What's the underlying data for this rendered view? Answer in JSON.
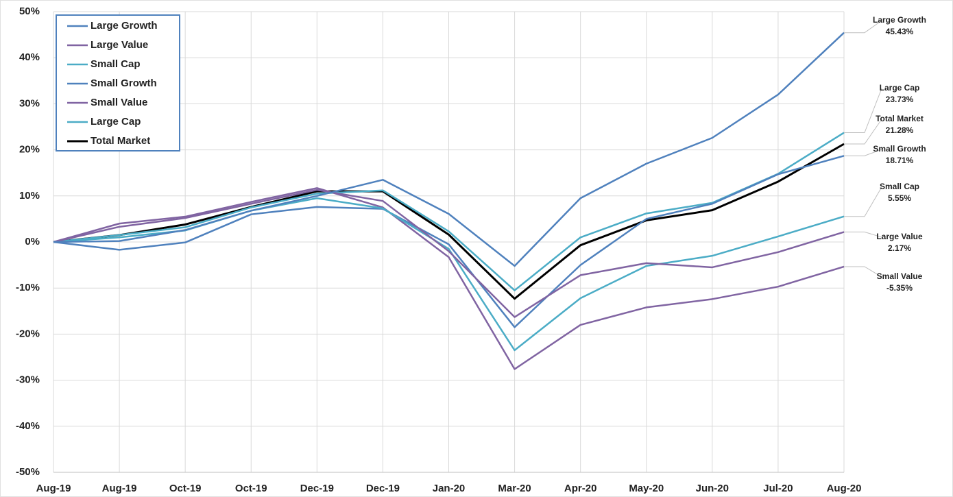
{
  "chart_data": {
    "type": "line",
    "categories": [
      "Aug-19",
      "Aug-19",
      "Oct-19",
      "Oct-19",
      "Dec-19",
      "Dec-19",
      "Jan-20",
      "Mar-20",
      "Apr-20",
      "May-20",
      "Jun-20",
      "Jul-20",
      "Aug-20"
    ],
    "ylim": [
      -50,
      50
    ],
    "yticks": [
      {
        "value": -50,
        "label": "-50%"
      },
      {
        "value": -40,
        "label": "-40%"
      },
      {
        "value": -30,
        "label": "-30%"
      },
      {
        "value": -20,
        "label": "-20%"
      },
      {
        "value": -10,
        "label": "-10%"
      },
      {
        "value": 0,
        "label": "0%"
      },
      {
        "value": 10,
        "label": "10%"
      },
      {
        "value": 20,
        "label": "20%"
      },
      {
        "value": 30,
        "label": "30%"
      },
      {
        "value": 40,
        "label": "40%"
      },
      {
        "value": 50,
        "label": "50%"
      }
    ],
    "grid": true,
    "legend": "top-left",
    "series": [
      {
        "name": "Large Growth",
        "color": "#4f81bd",
        "values": [
          0,
          0.2,
          2.6,
          6.8,
          10,
          13.5,
          6.1,
          -5.2,
          9.5,
          17,
          22.6,
          32,
          45.43
        ],
        "end_label": "45.43%"
      },
      {
        "name": "Large Value",
        "color": "#8064a2",
        "values": [
          0,
          3.3,
          5.2,
          8.3,
          11.3,
          8.9,
          -2,
          -16.3,
          -7.2,
          -4.6,
          -5.5,
          -2.2,
          2.17
        ],
        "end_label": "2.17%"
      },
      {
        "name": "Small Cap",
        "color": "#4bacc6",
        "values": [
          0,
          1,
          2.5,
          6.8,
          9.5,
          7.3,
          -1.5,
          -23.5,
          -12.2,
          -5.2,
          -3,
          1.2,
          5.55
        ],
        "end_label": "5.55%"
      },
      {
        "name": "Small Growth",
        "color": "#4f81bd",
        "values": [
          0,
          -1.7,
          -0.1,
          6,
          7.6,
          7.2,
          -0.5,
          -18.5,
          -5,
          5,
          8.3,
          14.7,
          18.71
        ],
        "end_label": "18.71%"
      },
      {
        "name": "Small Value",
        "color": "#8064a2",
        "values": [
          0,
          4,
          5.5,
          8.7,
          11.7,
          7.5,
          -3.3,
          -27.6,
          -18,
          -14.2,
          -12.4,
          -9.7,
          -5.35
        ],
        "end_label": "-5.35%"
      },
      {
        "name": "Large Cap",
        "color": "#4bacc6",
        "values": [
          0,
          1.5,
          3.2,
          7.5,
          10.5,
          11.2,
          2.3,
          -10.5,
          1,
          6.2,
          8.5,
          14.8,
          23.73
        ],
        "end_label": "23.73%"
      },
      {
        "name": "Total Market",
        "color": "#000000",
        "values": [
          0,
          1.5,
          3.8,
          7.6,
          11,
          11,
          1.6,
          -12.3,
          -0.7,
          4.7,
          6.9,
          13.1,
          21.28
        ],
        "end_label": "21.28%"
      }
    ]
  }
}
